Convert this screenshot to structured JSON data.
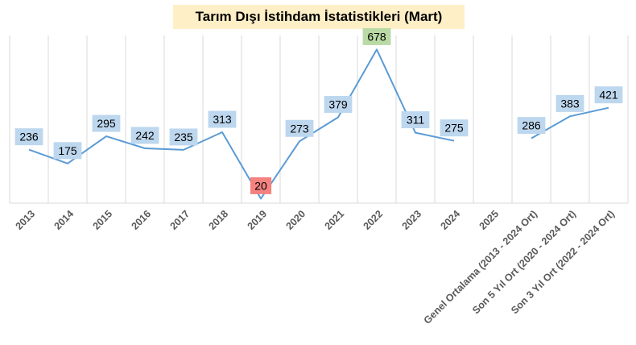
{
  "chart_data": {
    "type": "line",
    "title": "Tarım Dışı İstihdam İstatistikleri (Mart)",
    "xlabel": "",
    "ylabel": "",
    "categories": [
      "2013",
      "2014",
      "2015",
      "2016",
      "2017",
      "2018",
      "2019",
      "2020",
      "2021",
      "2022",
      "2023",
      "2024",
      "2025",
      "Genel Ortalama (2013 - 2024 Ort)",
      "Son 5 Yıl Ort (2020 - 2024 Ort)",
      "Son 3 Yıl Ort (2022 - 2024 Ort)"
    ],
    "series": [
      {
        "values": [
          236,
          175,
          295,
          242,
          235,
          313,
          20,
          273,
          379,
          678,
          311,
          275,
          null,
          286,
          383,
          421
        ]
      }
    ],
    "ylim": [
      0,
      740
    ],
    "grid": "vertical",
    "legend": "none",
    "colors": {
      "line": "#5b9bd5",
      "label_default": "#bdd7ee",
      "label_min": "#f4827f",
      "label_max": "#b9d9a5",
      "title_bg": "#ffefc6",
      "grid": "#d9d9d9",
      "tick_text": "#595959"
    }
  }
}
